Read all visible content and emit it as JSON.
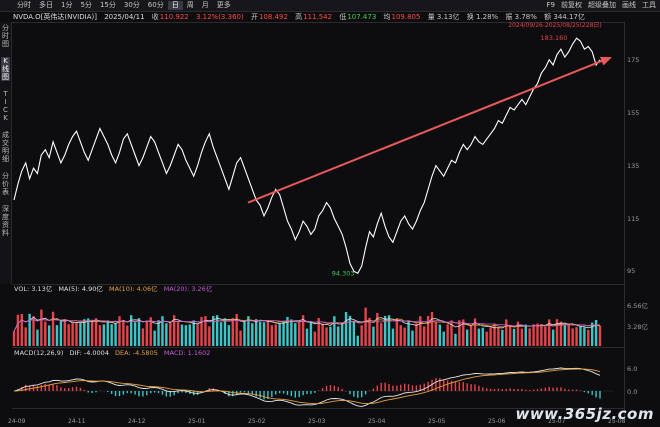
{
  "toolbar": {
    "tabs": [
      "分时",
      "多日",
      "1分",
      "5分",
      "15分",
      "30分",
      "60分",
      "日",
      "周",
      "月",
      "更多"
    ],
    "active_tab": "日",
    "right": [
      "F9",
      "前复权",
      "超级叠加",
      "画线",
      "工具"
    ]
  },
  "header": {
    "name": "NVDA.O[英伟达(NVIDIA)]",
    "date": "2025/04/11",
    "price_label": "收",
    "price": "110.922",
    "change": "3.12%(3.360)",
    "open_label": "开",
    "open": "108.492",
    "high_label": "高",
    "high": "111.542",
    "low_label": "低",
    "low": "107.473",
    "pclose_label": "均",
    "pclose": "109.805",
    "volume": "量 3.13亿",
    "turnover": "换 1.28%",
    "amplitude": "振 3.78%",
    "amount": "额 344.17亿",
    "range": "2024/09/26-2025/08/25(228日)"
  },
  "sidebar": [
    {
      "text": "分时图",
      "active": false
    },
    {
      "text": "K线图",
      "active": true
    },
    {
      "text": "TICK",
      "active": false
    },
    {
      "text": "成交明细",
      "active": false
    },
    {
      "text": "分价表",
      "active": false
    },
    {
      "text": "深度资料",
      "active": false
    }
  ],
  "price_axis": [
    "175",
    "155",
    "135",
    "115",
    "95"
  ],
  "price_values": [
    175,
    155,
    135,
    115,
    95
  ],
  "annotations": {
    "max": "183.160",
    "min": "94.303"
  },
  "vol_pane": {
    "vol": "VOL: 3.13亿",
    "ma5": "MA(5): 4.90亿",
    "ma10": "MA(10): 4.06亿",
    "ma20": "MA(20): 3.26亿",
    "ticks": [
      "6.56亿",
      "3.28亿"
    ]
  },
  "macd_pane": {
    "macd": "MACD(12,26,9)",
    "dif": "DIF: -4.0004",
    "dea": "DEA: -4.5805",
    "macd_val": "MACD: 1.1602",
    "ticks": [
      "6.0",
      "0.0"
    ]
  },
  "x_axis": [
    "24-09",
    "24-11",
    "24-12",
    "25-01",
    "25-02",
    "25-03",
    "25-04",
    "25-05",
    "25-06",
    "25-07",
    "25-08"
  ],
  "watermark": "www.365jz.com",
  "colors": {
    "up": "#e8424a",
    "down": "#3cc6c8",
    "line": "#ffffff",
    "trend": "#e85a5a",
    "ma_orange": "#e6a03a",
    "ma_purple": "#c55bd6",
    "ma_yellow": "#e0d050"
  },
  "chart_data": {
    "type": "line",
    "title": "NVDA.O[英伟达(NVIDIA)]",
    "xlabel": "",
    "ylabel": "",
    "x_ticks": [
      "24-09",
      "24-11",
      "24-12",
      "25-01",
      "25-02",
      "25-03",
      "25-04",
      "25-05",
      "25-06",
      "25-07",
      "25-08"
    ],
    "ylim": [
      91,
      187
    ],
    "series": [
      {
        "values": [
          122,
          128,
          133,
          136,
          130,
          134,
          132,
          139,
          141,
          138,
          144,
          140,
          136,
          139,
          143,
          146,
          148,
          144,
          140,
          137,
          141,
          145,
          149,
          146,
          143,
          139,
          136,
          140,
          145,
          147,
          143,
          139,
          135,
          138,
          142,
          146,
          144,
          140,
          136,
          132,
          135,
          139,
          143,
          141,
          137,
          134,
          131,
          135,
          140,
          144,
          147,
          142,
          138,
          134,
          130,
          126,
          131,
          136,
          138,
          134,
          130,
          126,
          122,
          120,
          116,
          119,
          123,
          126,
          124,
          119,
          114,
          111,
          107,
          110,
          114,
          112,
          109,
          111,
          116,
          118,
          121,
          119,
          115,
          112,
          109,
          104,
          98,
          95,
          94.3,
          97,
          104,
          110,
          108,
          113,
          117,
          112,
          108,
          106,
          110,
          114,
          116,
          113,
          111,
          114,
          118,
          121,
          126,
          131,
          135,
          133,
          131,
          134,
          137,
          136,
          140,
          143,
          141,
          143,
          146,
          144,
          143,
          145,
          147,
          149,
          152,
          151,
          154,
          157,
          156,
          158,
          160,
          158,
          161,
          164,
          166,
          170,
          172,
          175,
          173,
          177,
          179,
          176,
          178,
          181,
          183.16,
          182,
          179,
          180,
          178,
          173,
          175
        ]
      }
    ],
    "trend_line": {
      "from": [
        0.39,
        121
      ],
      "to": [
        1.0,
        176
      ]
    }
  }
}
